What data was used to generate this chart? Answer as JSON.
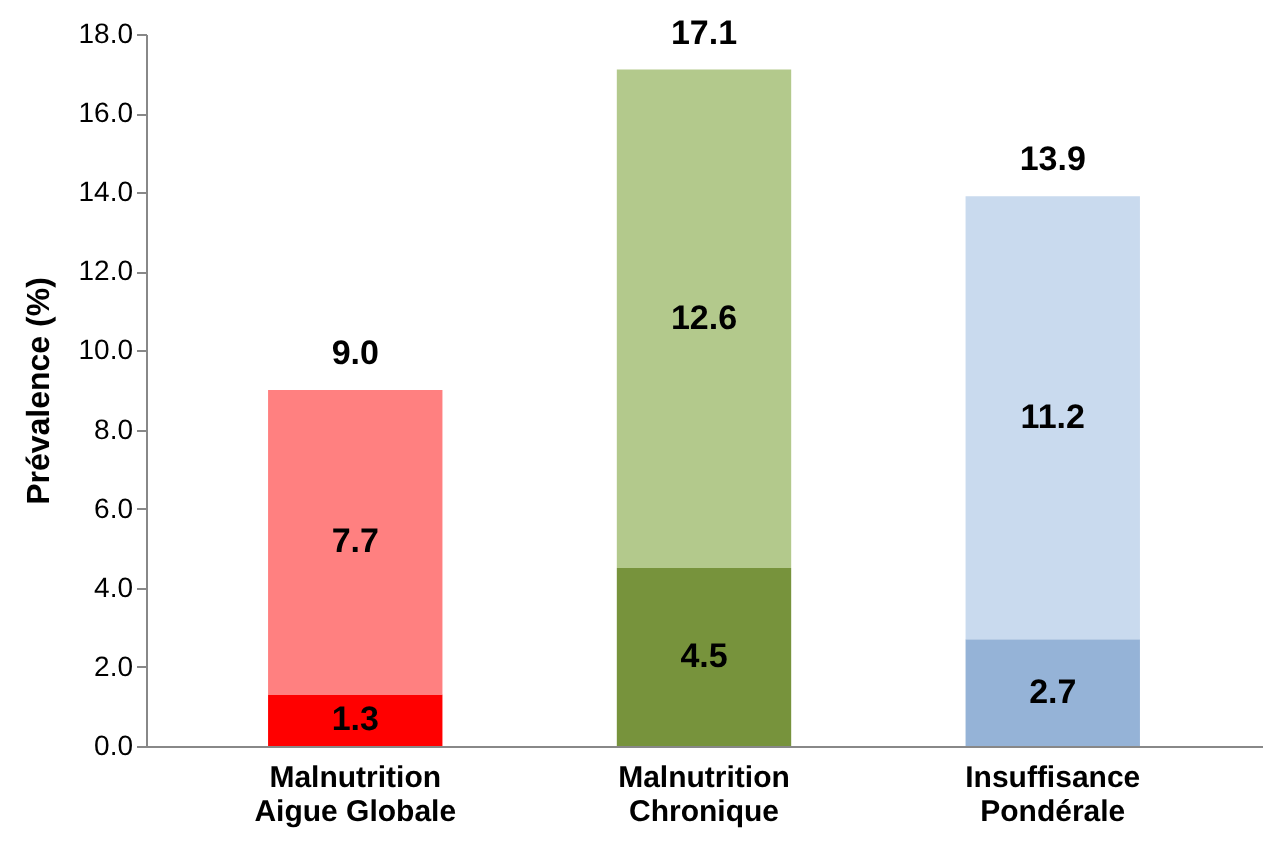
{
  "chart_data": {
    "type": "bar",
    "stacked": true,
    "ylabel": "Prévalence (%)",
    "categories": [
      "Malnutrition\nAigue Globale",
      "Malnutrition\nChronique",
      "Insuffisance\nPondérale"
    ],
    "series": [
      {
        "colors": [
          "#ff0000",
          "#77933c",
          "#95b3d7"
        ],
        "values": [
          1.3,
          4.5,
          2.7
        ]
      },
      {
        "colors": [
          "#ff8080",
          "#b3c98c",
          "#c9daee"
        ],
        "values": [
          7.7,
          12.6,
          11.2
        ]
      }
    ],
    "ylim": [
      0,
      18
    ],
    "yticks": [
      {
        "value": 0,
        "label": "0.0"
      },
      {
        "value": 2,
        "label": "2.0"
      },
      {
        "value": 4,
        "label": "4.0"
      },
      {
        "value": 6,
        "label": "6.0"
      },
      {
        "value": 8,
        "label": "8.0"
      },
      {
        "value": 10,
        "label": "10.0"
      },
      {
        "value": 12,
        "label": "12.0"
      },
      {
        "value": 14,
        "label": "14.0"
      },
      {
        "value": 16,
        "label": "16.0"
      },
      {
        "value": 18,
        "label": "18.0"
      }
    ],
    "data_labels": true,
    "totals": [
      "9.0",
      "17.1",
      "13.9"
    ],
    "grid": false
  }
}
